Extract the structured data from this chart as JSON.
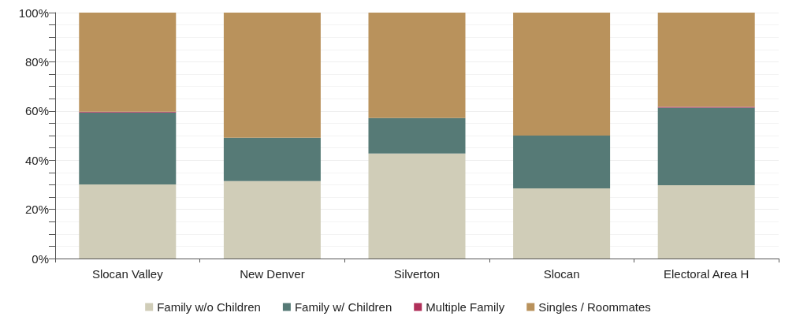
{
  "chart_data": {
    "type": "bar",
    "stacked": true,
    "categories": [
      "Slocan Valley",
      "New Denver",
      "Silverton",
      "Slocan",
      "Electoral Area H"
    ],
    "series": [
      {
        "name": "Family w/o Children",
        "color": "#d0cdb8",
        "values": [
          30.1,
          31.5,
          42.7,
          28.5,
          29.8
        ]
      },
      {
        "name": "Family w/ Children",
        "color": "#567a76",
        "values": [
          29.3,
          17.6,
          14.4,
          21.5,
          31.6
        ]
      },
      {
        "name": "Multiple Family",
        "color": "#b0305a",
        "values": [
          0.3,
          0,
          0,
          0,
          0.3
        ]
      },
      {
        "name": "Singles / Roommates",
        "color": "#b9925c",
        "values": [
          40.3,
          50.9,
          42.9,
          50.0,
          38.3
        ]
      }
    ],
    "ylim": [
      0,
      100
    ],
    "yticks": [
      {
        "value": 0,
        "label": "0%"
      },
      {
        "value": 20,
        "label": "20%"
      },
      {
        "value": 40,
        "label": "40%"
      },
      {
        "value": 60,
        "label": "60%"
      },
      {
        "value": 80,
        "label": "80%"
      },
      {
        "value": 100,
        "label": "100%"
      }
    ],
    "grid": true,
    "legend": "bottom"
  }
}
